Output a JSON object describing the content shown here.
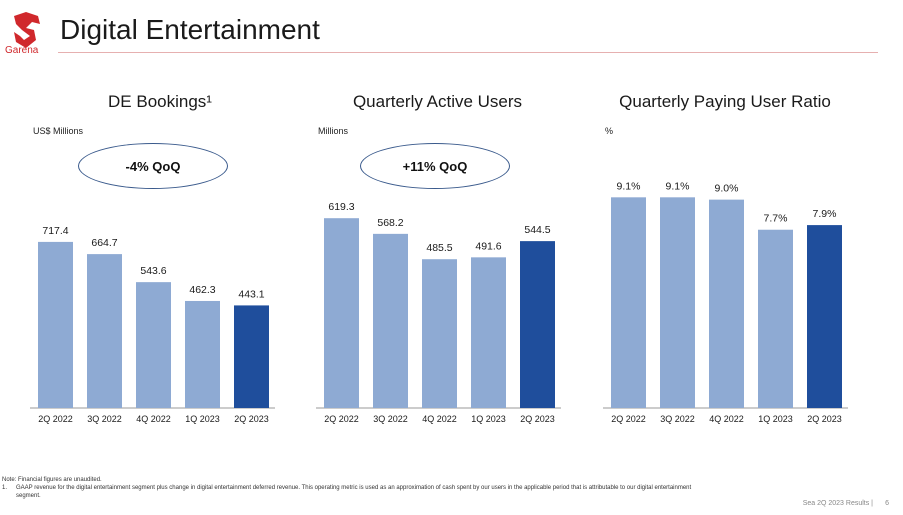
{
  "header": {
    "title": "Digital Entertainment",
    "logo_text": "Garena"
  },
  "colors": {
    "bar_light": "#8eaad3",
    "bar_dark": "#1f4e9c",
    "accent_red": "#d0282c"
  },
  "chart_data": [
    {
      "type": "bar",
      "title": "DE Bookings¹",
      "unit": "US$ Millions",
      "annotation": "-4% QoQ",
      "categories": [
        "2Q 2022",
        "3Q 2022",
        "4Q 2022",
        "1Q 2023",
        "2Q 2023"
      ],
      "values": [
        717.4,
        664.7,
        543.6,
        462.3,
        443.1
      ],
      "labels": [
        "717.4",
        "664.7",
        "543.6",
        "462.3",
        "443.1"
      ],
      "ylim": [
        0,
        920
      ]
    },
    {
      "type": "bar",
      "title": "Quarterly Active Users",
      "unit": "Millions",
      "annotation": "+11% QoQ",
      "categories": [
        "2Q 2022",
        "3Q 2022",
        "4Q 2022",
        "1Q 2023",
        "2Q 2023"
      ],
      "values": [
        619.3,
        568.2,
        485.5,
        491.6,
        544.5
      ],
      "labels": [
        "619.3",
        "568.2",
        "485.5",
        "491.6",
        "544.5"
      ],
      "ylim": [
        0,
        695
      ]
    },
    {
      "type": "bar",
      "title": "Quarterly Paying User Ratio",
      "unit": "%",
      "annotation": "",
      "categories": [
        "2Q 2022",
        "3Q 2022",
        "4Q 2022",
        "1Q 2023",
        "2Q 2023"
      ],
      "values": [
        9.1,
        9.1,
        9.0,
        7.7,
        7.9
      ],
      "labels": [
        "9.1%",
        "9.1%",
        "9.0%",
        "7.7%",
        "7.9%"
      ],
      "ylim": [
        0,
        9.2
      ]
    }
  ],
  "footnotes": {
    "note": "Note: Financial figures are unaudited.",
    "item1_num": "1.",
    "item1": "GAAP revenue for the digital entertainment segment plus change in digital entertainment deferred revenue. This operating metric is used as an approximation of cash spent by our users in the applicable period that is attributable to our digital entertainment segment."
  },
  "footer": {
    "text": "Sea 2Q 2023 Results |",
    "page": "6"
  }
}
